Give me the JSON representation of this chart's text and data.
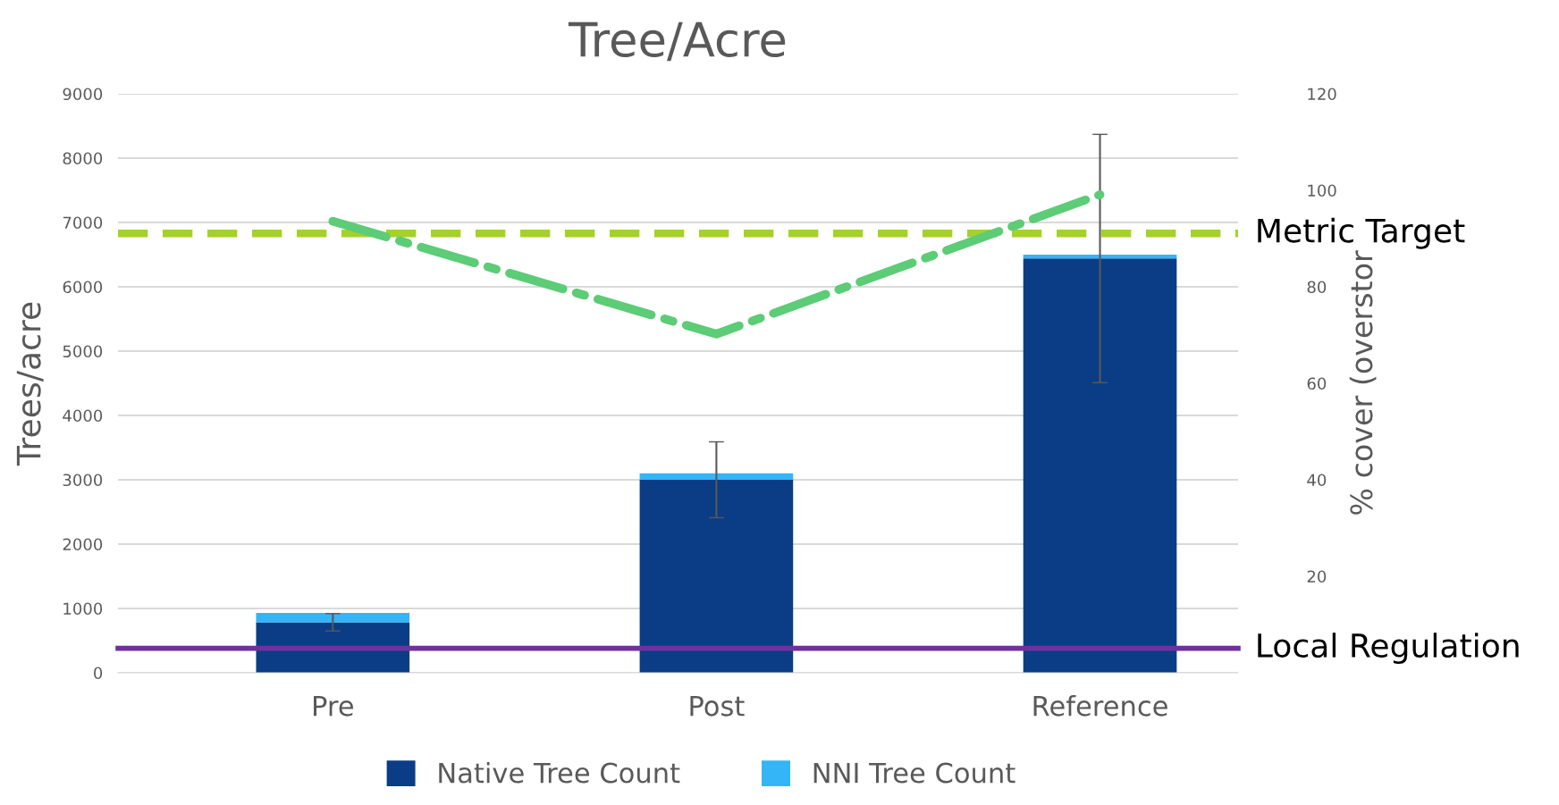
{
  "chart_data": {
    "type": "bar",
    "title": "Tree/Acre",
    "ylabel": "Trees/acre",
    "y2label": "% cover (overstor",
    "categories": [
      "Pre",
      "Post",
      "Reference"
    ],
    "stacked": true,
    "series": [
      {
        "name": "Native Tree Count",
        "color": "#0a3d85",
        "values": [
          785,
          3000,
          6440
        ],
        "errors": [
          135,
          590,
          1930
        ]
      },
      {
        "name": "NNI Tree Count",
        "color": "#33b5f7",
        "values": [
          145,
          100,
          60
        ]
      },
      {
        "type": "line",
        "axis": "y2",
        "color": "#5ccc76",
        "values": [
          93.6,
          70.2,
          99.1
        ],
        "line_style": "dashdot"
      }
    ],
    "ylim": [
      0,
      9000
    ],
    "yticks": [
      0,
      1000,
      2000,
      3000,
      4000,
      5000,
      6000,
      7000,
      8000,
      9000
    ],
    "y2lim": [
      0,
      120
    ],
    "y2ticks": [
      {
        "value": 0,
        "label": null
      },
      20,
      40,
      60,
      80,
      100,
      120
    ],
    "ref_lines": [
      {
        "axis": "y",
        "value": 6830,
        "label": "Metric Target",
        "color": "#a4d12a",
        "line_style": "dashed"
      },
      {
        "axis": "y",
        "value": 380,
        "label": "Local Regulation",
        "color": "#7030a0",
        "line_style": "solid"
      }
    ],
    "grid": "y",
    "legend": "bottom"
  }
}
